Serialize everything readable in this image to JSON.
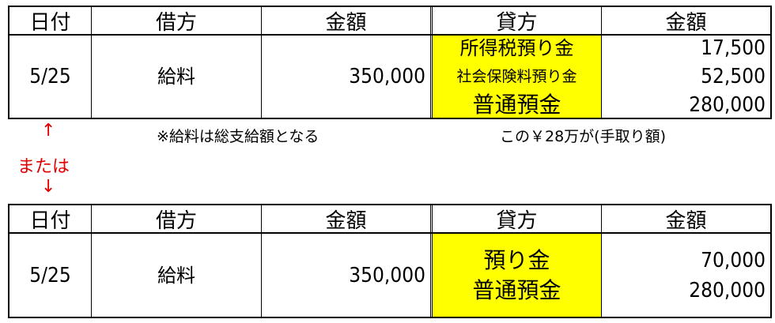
{
  "headers": [
    "日付",
    "借方",
    "金額",
    "貸方",
    "金額"
  ],
  "entry1": {
    "date": "5/25",
    "debit": "給料",
    "debit_amount": "350,000",
    "credits": [
      {
        "account": "所得税預り金",
        "amount": "17,500"
      },
      {
        "account": "社会保険料預り金",
        "amount": "52,500"
      },
      {
        "account": "普通預金",
        "amount": "280,000"
      }
    ]
  },
  "note_left": "※給料は総支給額となる",
  "note_right": "この￥28万が(手取り額)",
  "alt": {
    "up_arrow": "↑",
    "label": "または",
    "down_arrow": "↓"
  },
  "entry2": {
    "date": "5/25",
    "debit": "給料",
    "debit_amount": "350,000",
    "credits": [
      {
        "account": "預り金",
        "amount": "70,000"
      },
      {
        "account": "普通預金",
        "amount": "280,000"
      }
    ]
  },
  "colors": {
    "highlight": "#ffff00",
    "alt_text": "#e00000"
  }
}
